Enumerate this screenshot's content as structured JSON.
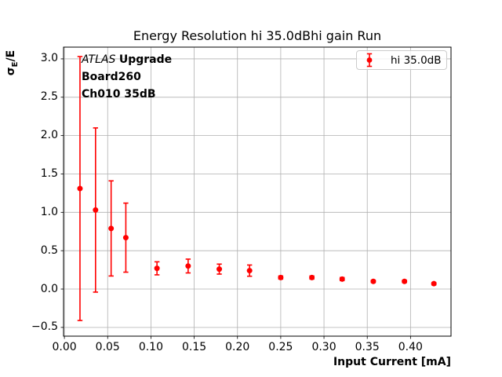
{
  "chart_data": {
    "type": "scatter",
    "title": "Energy Resolution hi 35.0dBhi gain Run",
    "xlabel": "Input Current [mA]",
    "ylabel": "σE/E",
    "ylabel_parts": {
      "base": "σ",
      "sub": "E",
      "rest": "/E"
    },
    "xlim": [
      -0.001,
      0.4468
    ],
    "ylim": [
      -0.614,
      3.153
    ],
    "xticks": [
      0.0,
      0.05,
      0.1,
      0.15,
      0.2,
      0.25,
      0.3,
      0.35,
      0.4
    ],
    "xtick_labels": [
      "0.00",
      "0.05",
      "0.10",
      "0.15",
      "0.20",
      "0.25",
      "0.30",
      "0.35",
      "0.40"
    ],
    "yticks": [
      -0.5,
      0.0,
      0.5,
      1.0,
      1.5,
      2.0,
      2.5,
      3.0
    ],
    "ytick_labels": [
      "−0.5",
      "0.0",
      "0.5",
      "1.0",
      "1.5",
      "2.0",
      "2.5",
      "3.0"
    ],
    "grid": true,
    "grid_color": "#b0b0b0",
    "axis_color": "#000000",
    "legend": {
      "position": "upper right",
      "entries": [
        "hi 35.0dB"
      ]
    },
    "series": [
      {
        "name": "hi 35.0dB",
        "color": "#ff0000",
        "marker": "o",
        "x": [
          0.018,
          0.036,
          0.054,
          0.071,
          0.107,
          0.143,
          0.179,
          0.214,
          0.25,
          0.286,
          0.321,
          0.357,
          0.393,
          0.427
        ],
        "y": [
          1.31,
          1.03,
          0.79,
          0.67,
          0.27,
          0.3,
          0.26,
          0.24,
          0.15,
          0.15,
          0.13,
          0.1,
          0.1,
          0.07
        ],
        "yerr": [
          1.72,
          1.07,
          0.62,
          0.45,
          0.085,
          0.09,
          0.065,
          0.073,
          0.02,
          0.02,
          0.02,
          0.015,
          0.015,
          0.015
        ]
      }
    ]
  },
  "annotation": {
    "line1_italic": "ATLAS",
    "line1_bold": "Upgrade",
    "line2": "Board260",
    "line3": "Ch010 35dB"
  }
}
